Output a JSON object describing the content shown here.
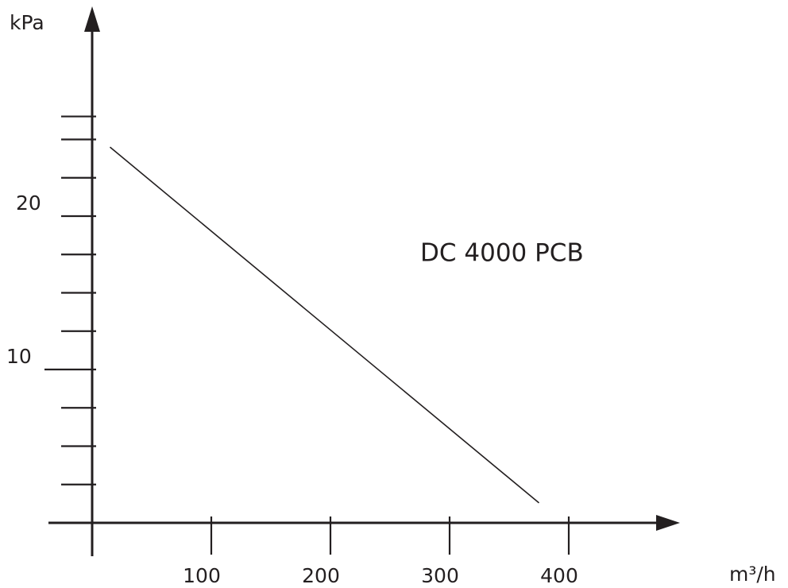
{
  "chart_data": {
    "type": "line",
    "title": "",
    "xlabel": "m³/h",
    "ylabel": "kPa",
    "xlim": [
      0,
      480
    ],
    "ylim": [
      0,
      27
    ],
    "x_ticks": [
      100,
      200,
      300,
      400
    ],
    "x_tick_labels": [
      "100",
      "200",
      "300",
      "400"
    ],
    "y_ticks": [
      2.5,
      5,
      7.5,
      10,
      12.5,
      15,
      17.5,
      20,
      22.5,
      25,
      26.5
    ],
    "y_labeled_ticks": [
      10,
      20
    ],
    "y_tick_labels": [
      "10",
      "20"
    ],
    "grid": false,
    "series": [
      {
        "x": [
          15,
          375
        ],
        "y": [
          24.5,
          1.3
        ]
      }
    ],
    "annotations": [
      {
        "text": "DC 4000 PCB",
        "x": 280,
        "y": 17.5
      }
    ],
    "colors": {
      "ink": "#231f20"
    }
  }
}
